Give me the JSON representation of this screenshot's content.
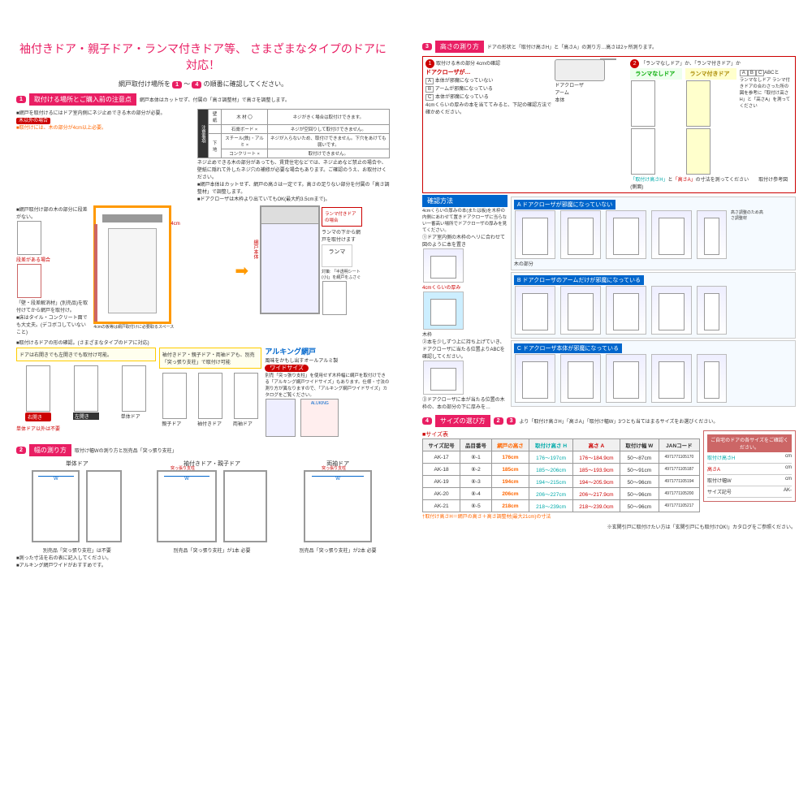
{
  "left": {
    "title": "袖付きドア・親子ドア・ランマ付きドア等、\nさまざまなタイプのドアに対応！",
    "subtitle_pre": "網戸取付け場所を",
    "subtitle_post": "の順番に確認してください。",
    "step1": {
      "num": "1",
      "label": "取付ける場所とご購入前の注意点",
      "desc": "網戸本体はカットせず、付属の「高さ調整材」で高さを調整します。",
      "bullet1": "■網戸を取付けるにはドア室内側にネジ止めできる木の部分が必要。",
      "badge1": "木以外の場合",
      "bullet2": "■取付けには、木の部分が4cm以上必要。",
      "caution_label": "注意事項",
      "caution_table": {
        "r1": [
          "壁 紙",
          "木 材 〇",
          "ネジがきく場合は取付けできます。"
        ],
        "r2": [
          "",
          "石膏ボード ×",
          "ネジが空回りして取付けできません。"
        ],
        "r3": [
          "下 地",
          "スチール(鉄)・アルミ ×",
          "ネジが入らないため、取付けできません。下穴をあけても弱いです。"
        ],
        "r4": [
          "",
          "コンクリート ×",
          "取付けできません。"
        ]
      },
      "caution_text": "ネジ止めできる木の部分があっても、賃貸住宅などでは、ネジ止めなど禁止の場合や、壁紙に隠れて外したネジ穴の補修が必要な場合もあります。ご確認のうえ、お取付けください。",
      "bullet3": "■網戸本体はカットせず、網戸の高さは一定です。高さの足りない部分を付属の「高さ調整材」で調整します。",
      "bullet4": "■ドアクローザは木枠より出ていてもOK(最大約3.5cmまで)。",
      "side_label1": "■網戸取付け部の木の部分に段差がない。",
      "side_label2": "段差がある場合",
      "side_note": "「壁・段差解消材」(別売品)を取付けてから網戸を取付け。",
      "side_label3": "■床はタイル・コンクリート面でも大丈夫。(デコボコしていないこと)",
      "cm4": "4cm",
      "cm4_note": "4cmの板等は網戸取付けに必要取るスペース",
      "ranma_label": "ランマの下から網戸を取付けます",
      "ranma_box": "ランマ",
      "ranma_small": "対策: 「半透明シート(小)」を網戸をふさぐ",
      "door_body": "網戸本体",
      "door_type_title": "■取付けるドアの形の確認。(さまざまなタイプのドアに対応)",
      "door_type_a": "ドアは右開きでも左開きでも取付け可能。",
      "door_type_b": "袖付きドア・親子ドア・両袖ドアも、別売「突っ張り支柱」で取付け可能",
      "door_labels": [
        "右開き",
        "左開き",
        "単体ドア",
        "親子ドア",
        "袖付きドア",
        "両袖ドア"
      ],
      "door_ng": "単体ドア以外は不要",
      "aluking": "アルキング網戸",
      "aluking_sub": "風味をかもし出すオールアルミ製",
      "wide": "ワイドサイズ",
      "wide_text": "別売「突っ張り支柱」を使用せず木枠幅に網戸を取付けできる「アルキング網戸ワイドサイズ」もあります。仕様・寸法の測り方が異なりますので、「アルキング網戸ワイドサイズ」カタログをご覧ください。",
      "aluking_logo": "ALUKING"
    },
    "step2": {
      "num": "2",
      "label": "幅の測り方",
      "desc": "取付け幅Wの測り方と別売品「突っ張り支柱」",
      "types": [
        {
          "name": "単体ドア",
          "note": "別売品「突っ張り支柱」は不要"
        },
        {
          "name": "袖付きドア・親子ドア",
          "note": "別売品「突っ張り支柱」が1本 必要"
        },
        {
          "name": "両袖ドア",
          "note": "別売品「突っ張り支柱」が2本 必要"
        }
      ],
      "footer1": "■測った寸法を右の表に記入してください。",
      "footer2": "■アルキング網戸ワイドがおすすめです。",
      "w_label": "W",
      "pole": "突っ張り支柱"
    }
  },
  "right": {
    "step3": {
      "num": "3",
      "label": "高さの測り方",
      "desc": "ドアの形状と「取付け高さH」と「高さA」の測り方…高さは2ヶ所測ります。",
      "step_a": {
        "num": "1",
        "title": "取付ける木の部分 4cmの確認",
        "closer_title": "ドアクローザが…",
        "opts": {
          "A": "本体が邪魔になっていない",
          "B": "アームが邪魔になっている",
          "C": "本体が邪魔になっている"
        },
        "arm": "アーム",
        "body": "本体",
        "closer": "ドアクローザ",
        "note": "4cmくらいの厚みの本を当ててみると、下記の確認方法で確かめください。"
      },
      "step_b": {
        "num": "2",
        "title": "「ランマなしドア」か、「ランマ付きドア」か",
        "ranma_no": "ランマなしドア",
        "ranma_yes": "ランマ付きドア",
        "abc_label": "ABCと",
        "abc_text": "ランマなしドア ランマ付きドアの合わさった所の図を参考に「取付け高さH」と「高さA」を測ってください",
        "measure_note": "「取付け高さH」と「高さA」の寸法を測ってください",
        "ref_label": "取付け参考図(側面)"
      },
      "confirm_label": "確認方法",
      "case_a": {
        "title": "A ドアクローザが邪魔になっていない",
        "wood": "木の部分"
      },
      "case_b": {
        "title": "B ドアクローザのアームだけが邪魔になっている"
      },
      "case_c": {
        "title": "C ドアクローザ本体が邪魔になっている"
      },
      "book_note": "4cmくらいの厚みの本(または板)を木枠の内側にあわせて置きドアクローザに当らない一番高い場所でドアクローザの厚みを見てください。",
      "step_notes": [
        "①ドア室内側の木枠のヘリに合わせて図のように本を置き",
        "②本を少しずつ上に持ち上げていき、ドアクローザに当たる位置よりABCを確認してください。",
        "③ドアクローザに本が当たる位置の木枠の、本の部分の下に厚みを…"
      ],
      "thickness": "4cmくらいの厚み",
      "frame": "木枠",
      "height_h": "取付け高さH",
      "height_a": "高さA",
      "adjust_note": "高さ調整のため高さ調整材"
    },
    "step4": {
      "num": "4",
      "label": "サイズの選び方",
      "desc": "より「取付け高さH」「高さA」「取付け幅W」3つとも当てはまるサイズをお選びください。",
      "table_title": "■サイズ表",
      "headers": [
        "サイズ記号",
        "品目番号",
        "網戸の高さ",
        "取付け高さ H",
        "高さ A",
        "取付け幅 W",
        "JANコード"
      ],
      "rows": [
        [
          "AK-17",
          "⑧-1",
          "176cm",
          "176〜197cm",
          "176〜184.9cm",
          "50〜87cm",
          "4971771105170"
        ],
        [
          "AK-18",
          "⑧-2",
          "185cm",
          "185〜206cm",
          "185〜193.9cm",
          "50〜91cm",
          "4971771105187"
        ],
        [
          "AK-19",
          "⑧-3",
          "194cm",
          "194〜215cm",
          "194〜205.9cm",
          "50〜96cm",
          "4971771105194"
        ],
        [
          "AK-20",
          "⑧-4",
          "206cm",
          "206〜227cm",
          "206〜217.9cm",
          "50〜96cm",
          "4971771105200"
        ],
        [
          "AK-21",
          "⑧-5",
          "218cm",
          "218〜239cm",
          "218〜239.0cm",
          "50〜96cm",
          "4971771105217"
        ]
      ],
      "footnote": "†取付け高さH＝網戸の高さ＋高さ調整材(最大21cm)の寸法",
      "end_note": "※玄関引戸に取付けたい方は「玄関引戸にも取付けOK!」カタログをご参照ください。",
      "form": {
        "title": "ご自宅のドアの各サイズをご確認ください。",
        "fields": [
          "取付け高さH",
          "高さA",
          "取付け幅W",
          "サイズ記号"
        ],
        "unit": "cm",
        "prefix": "AK-"
      }
    }
  }
}
